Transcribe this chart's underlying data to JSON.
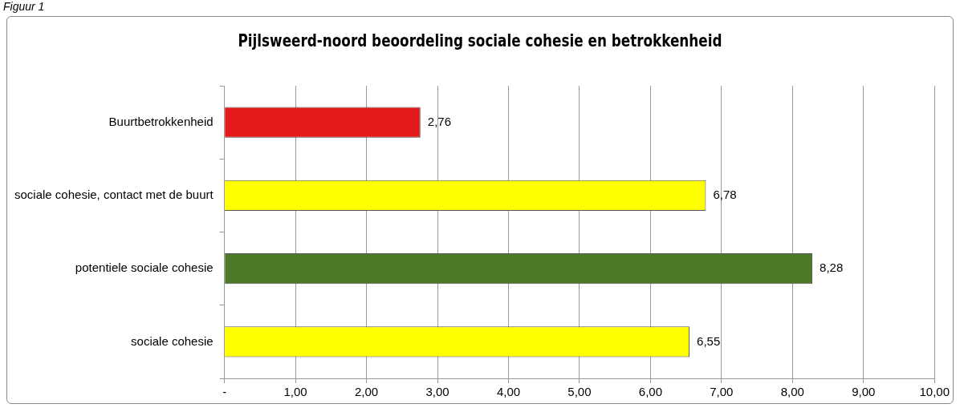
{
  "chart_data": {
    "type": "bar",
    "orientation": "horizontal",
    "title": "Pijlsweerd-noord beoordeling sociale cohesie en betrokkenheid",
    "annotations": [
      "Figuur 1"
    ],
    "categories": [
      "Buurtbetrokkenheid",
      "sociale cohesie, contact met de buurt",
      "potentiele sociale cohesie",
      "sociale cohesie"
    ],
    "values": [
      2.76,
      6.78,
      8.28,
      6.55
    ],
    "colors": [
      "#e31a1a",
      "#ffff00",
      "#4e7a27",
      "#ffff00"
    ],
    "value_labels": [
      "2,76",
      "6,78",
      "8,28",
      "6,55"
    ],
    "xlim": [
      0,
      10
    ],
    "xticks": [
      {
        "value": 0,
        "label": "-"
      },
      {
        "value": 1,
        "label": "1,00"
      },
      {
        "value": 2,
        "label": "2,00"
      },
      {
        "value": 3,
        "label": "3,00"
      },
      {
        "value": 4,
        "label": "4,00"
      },
      {
        "value": 5,
        "label": "5,00"
      },
      {
        "value": 6,
        "label": "6,00"
      },
      {
        "value": 7,
        "label": "7,00"
      },
      {
        "value": 8,
        "label": "8,00"
      },
      {
        "value": 9,
        "label": "9,00"
      },
      {
        "value": 10,
        "label": "10,00"
      }
    ],
    "grid": "x",
    "legend": false
  }
}
